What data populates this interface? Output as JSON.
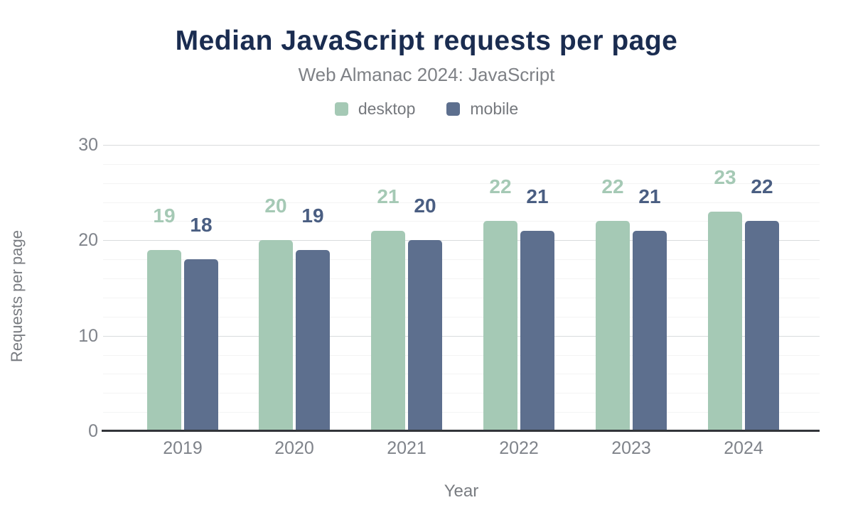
{
  "chart_data": {
    "type": "bar",
    "title": "Median JavaScript requests per page",
    "subtitle": "Web Almanac 2024: JavaScript",
    "xlabel": "Year",
    "ylabel": "Requests per page",
    "categories": [
      "2019",
      "2020",
      "2021",
      "2022",
      "2023",
      "2024"
    ],
    "series": [
      {
        "name": "desktop",
        "values": [
          19,
          20,
          21,
          22,
          22,
          23
        ],
        "color": "#a5c9b5",
        "label_color": "#a5c9b5"
      },
      {
        "name": "mobile",
        "values": [
          18,
          19,
          20,
          21,
          21,
          22
        ],
        "color": "#5d6f8e",
        "label_color": "#4a5e82"
      }
    ],
    "ylim": [
      0,
      30
    ],
    "yticks": [
      0,
      10,
      20,
      30
    ],
    "minor_grid_step": 2,
    "grid": "on",
    "legend_position": "top",
    "show_value_labels": true
  },
  "colors": {
    "title": "#1a2c50",
    "subtitle": "#7e8186",
    "tick": "#7f838a",
    "axis_line": "#32353a",
    "grid_major": "#d9dbdd",
    "grid_minor": "#f3f4f4",
    "background": "#ffffff"
  }
}
